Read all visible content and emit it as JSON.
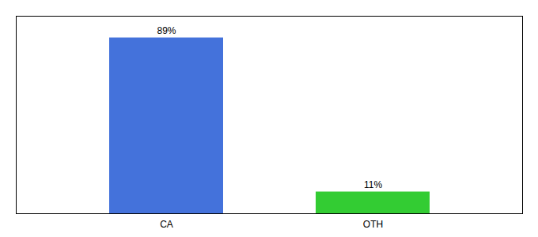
{
  "chart_data": {
    "type": "bar",
    "categories": [
      "CA",
      "OTH"
    ],
    "values": [
      89,
      11
    ],
    "colors": [
      "#4472db",
      "#33cc33"
    ],
    "ylim": [
      0,
      100
    ],
    "data_labels": true,
    "value_labels": [
      "89%",
      "11%"
    ],
    "tick_labels": "x",
    "grid": false
  }
}
